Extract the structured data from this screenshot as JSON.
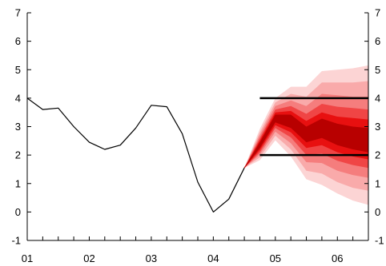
{
  "chart_data": {
    "type": "line",
    "title": "",
    "xlabel": "",
    "ylabel": "",
    "xlim": [
      2001.0,
      2006.5
    ],
    "ylim": [
      -1,
      7
    ],
    "x_tick_labels": [
      {
        "x": 2001.0,
        "label": "01"
      },
      {
        "x": 2002.0,
        "label": "02"
      },
      {
        "x": 2003.0,
        "label": "03"
      },
      {
        "x": 2004.0,
        "label": "04"
      },
      {
        "x": 2005.0,
        "label": "05"
      },
      {
        "x": 2006.0,
        "label": "06"
      }
    ],
    "y_ticks": [
      -1,
      0,
      1,
      2,
      3,
      4,
      5,
      6,
      7
    ],
    "y_tick_labels": [
      "-1",
      "0",
      "1",
      "2",
      "3",
      "4",
      "5",
      "6",
      "7"
    ],
    "right_axis": true,
    "grid": false,
    "series": [
      {
        "color": "#000000",
        "x": [
          2001.0,
          2001.25,
          2001.5,
          2001.75,
          2002.0,
          2002.25,
          2002.5,
          2002.75,
          2003.0,
          2003.25,
          2003.5,
          2003.75,
          2004.0,
          2004.25,
          2004.5
        ],
        "y": [
          4.0,
          3.6,
          3.65,
          3.0,
          2.45,
          2.2,
          2.35,
          2.95,
          3.75,
          3.7,
          2.75,
          1.05,
          0.0,
          0.45,
          1.55
        ]
      }
    ],
    "fan_chart": {
      "colors": [
        "#fcd4d4",
        "#f9aaaa",
        "#f57d7d",
        "#f04545",
        "#e81010",
        "#b80000"
      ],
      "x": [
        2004.5,
        2004.75,
        2005.0,
        2005.25,
        2005.5,
        2005.75,
        2006.0,
        2006.25,
        2006.5
      ],
      "central": [
        1.55,
        2.35,
        3.3,
        3.2,
        2.75,
        2.95,
        2.75,
        2.6,
        2.5
      ],
      "bands": [
        {
          "lower": [
            1.55,
            2.25,
            3.15,
            2.95,
            2.45,
            2.6,
            2.35,
            2.2,
            2.1
          ],
          "upper": [
            1.55,
            2.45,
            3.42,
            3.42,
            3.0,
            3.28,
            3.1,
            3.0,
            2.95
          ]
        },
        {
          "lower": [
            1.55,
            2.18,
            3.05,
            2.8,
            2.25,
            2.35,
            2.1,
            1.95,
            1.85
          ],
          "upper": [
            1.55,
            2.52,
            3.5,
            3.55,
            3.2,
            3.5,
            3.35,
            3.3,
            3.25
          ]
        },
        {
          "lower": [
            1.55,
            2.1,
            2.95,
            2.62,
            2.0,
            2.05,
            1.8,
            1.65,
            1.55
          ],
          "upper": [
            1.55,
            2.6,
            3.6,
            3.72,
            3.45,
            3.8,
            3.7,
            3.65,
            3.6
          ]
        },
        {
          "lower": [
            1.55,
            2.02,
            2.82,
            2.42,
            1.75,
            1.72,
            1.45,
            1.3,
            1.2
          ],
          "upper": [
            1.55,
            2.7,
            3.72,
            3.92,
            3.72,
            4.15,
            4.1,
            4.05,
            4.05
          ]
        },
        {
          "lower": [
            1.55,
            1.92,
            2.68,
            2.2,
            1.45,
            1.35,
            1.05,
            0.85,
            0.75
          ],
          "upper": [
            1.55,
            2.8,
            3.85,
            4.15,
            4.05,
            4.55,
            4.55,
            4.55,
            4.6
          ]
        },
        {
          "lower": [
            1.55,
            1.82,
            2.52,
            1.95,
            1.15,
            0.95,
            0.65,
            0.4,
            0.25
          ],
          "upper": [
            1.55,
            2.92,
            4.0,
            4.4,
            4.4,
            4.95,
            5.0,
            5.05,
            5.15
          ]
        }
      ]
    },
    "reference_lines": [
      {
        "y": 4.0,
        "x_start": 2004.75,
        "x_end": 2006.5,
        "color": "#000000"
      },
      {
        "y": 2.0,
        "x_start": 2004.75,
        "x_end": 2006.5,
        "color": "#000000"
      }
    ]
  }
}
